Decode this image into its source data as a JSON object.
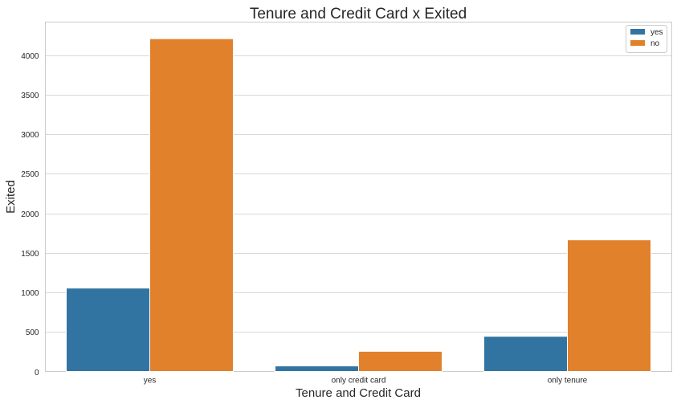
{
  "chart_data": {
    "type": "bar",
    "title": "Tenure and Credit Card x Exited",
    "xlabel": "Tenure and Credit Card",
    "ylabel": "Exited",
    "categories": [
      "yes",
      "only credit card",
      "only tenure"
    ],
    "series": [
      {
        "name": "yes",
        "values": [
          1055,
          70,
          445
        ],
        "color": "#3274a1"
      },
      {
        "name": "no",
        "values": [
          4210,
          255,
          1665
        ],
        "color": "#e1812c"
      }
    ],
    "ylim": [
      0,
      4420
    ],
    "yticks": [
      0,
      500,
      1000,
      1500,
      2000,
      2500,
      3000,
      3500,
      4000
    ],
    "grid": true,
    "legend_position": "top-right"
  }
}
